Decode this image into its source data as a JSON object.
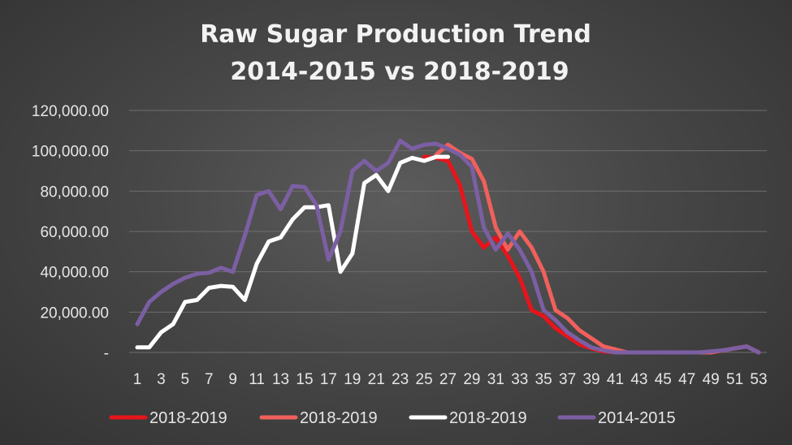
{
  "chart_data": {
    "type": "line",
    "title": [
      "Raw Sugar Production Trend",
      "2014-2015 vs 2018-2019"
    ],
    "xlabel": "",
    "ylabel": "",
    "x": [
      1,
      2,
      3,
      4,
      5,
      6,
      7,
      8,
      9,
      10,
      11,
      12,
      13,
      14,
      15,
      16,
      17,
      18,
      19,
      20,
      21,
      22,
      23,
      24,
      25,
      26,
      27,
      28,
      29,
      30,
      31,
      32,
      33,
      34,
      35,
      36,
      37,
      38,
      39,
      40,
      41,
      42,
      43,
      44,
      45,
      46,
      47,
      48,
      49,
      50,
      51,
      52,
      53
    ],
    "x_tick_labels": [
      "1",
      "3",
      "5",
      "7",
      "9",
      "11",
      "13",
      "15",
      "17",
      "19",
      "21",
      "23",
      "25",
      "27",
      "29",
      "31",
      "33",
      "35",
      "37",
      "39",
      "41",
      "43",
      "45",
      "47",
      "49",
      "51",
      "53"
    ],
    "ylim": [
      0,
      120000
    ],
    "y_ticks": [
      0,
      20000,
      40000,
      60000,
      80000,
      100000,
      120000
    ],
    "y_tick_labels": [
      "-",
      "20,000.00",
      "40,000.00",
      "60,000.00",
      "80,000.00",
      "100,000.00",
      "120,000.00"
    ],
    "grid": true,
    "legend_position": "bottom",
    "series": [
      {
        "name": "2018-2019",
        "color": "#e8141b",
        "x": [
          25,
          26,
          27,
          28,
          29,
          30,
          31,
          32,
          33,
          34,
          35,
          36,
          37,
          38,
          39,
          40,
          41,
          42,
          43,
          44,
          45,
          46,
          47,
          48,
          49,
          50,
          51,
          52,
          53
        ],
        "values": [
          97000,
          96500,
          95000,
          83000,
          60000,
          52000,
          57000,
          48000,
          37000,
          21000,
          18000,
          12000,
          8000,
          4000,
          2000,
          500,
          0,
          0,
          0,
          0,
          0,
          0,
          0,
          0,
          0,
          1000,
          2000,
          3000,
          0
        ]
      },
      {
        "name": "2018-2019",
        "color": "#f0605c",
        "x": [
          26,
          27,
          28,
          29,
          30,
          31,
          32,
          33,
          34,
          35,
          36,
          37,
          38,
          39,
          40,
          41,
          42,
          43,
          44,
          45,
          46,
          47,
          48,
          49,
          50,
          51,
          52,
          53
        ],
        "values": [
          98000,
          103000,
          99000,
          96000,
          85000,
          62000,
          51000,
          60000,
          52000,
          40000,
          21000,
          17000,
          11000,
          7000,
          3000,
          1500,
          0,
          0,
          0,
          0,
          0,
          0,
          0,
          0,
          1000,
          2000,
          3000,
          0
        ]
      },
      {
        "name": "2018-2019",
        "color": "#ffffff",
        "x": [
          1,
          2,
          3,
          4,
          5,
          6,
          7,
          8,
          9,
          10,
          11,
          12,
          13,
          14,
          15,
          16,
          17,
          18,
          19,
          20,
          21,
          22,
          23,
          24,
          25,
          26,
          27
        ],
        "values": [
          2500,
          2500,
          10000,
          14000,
          25000,
          26000,
          32000,
          33000,
          32500,
          26000,
          44000,
          55000,
          57000,
          66000,
          72000,
          72000,
          73000,
          40000,
          49000,
          84000,
          88000,
          80000,
          94000,
          96500,
          95000,
          97000,
          97000
        ]
      },
      {
        "name": "2014-2015",
        "color": "#7c5fa3",
        "x": [
          1,
          2,
          3,
          4,
          5,
          6,
          7,
          8,
          9,
          10,
          11,
          12,
          13,
          14,
          15,
          16,
          17,
          18,
          19,
          20,
          21,
          22,
          23,
          24,
          25,
          26,
          27,
          28,
          29,
          30,
          31,
          32,
          33,
          34,
          35,
          36,
          37,
          38,
          39,
          40,
          41,
          42,
          43,
          44,
          45,
          46,
          47,
          48,
          49,
          50,
          51,
          52,
          53
        ],
        "values": [
          14000,
          25000,
          30000,
          34000,
          37000,
          39000,
          39500,
          42000,
          40000,
          58000,
          78000,
          80000,
          71000,
          82500,
          82000,
          73000,
          46000,
          60000,
          90000,
          95000,
          90000,
          94000,
          105000,
          101000,
          103000,
          103500,
          101000,
          98000,
          92000,
          62000,
          51000,
          59000,
          51000,
          40000,
          21000,
          16000,
          10000,
          6000,
          2500,
          1000,
          0,
          0,
          0,
          0,
          0,
          0,
          0,
          0,
          500,
          1000,
          2000,
          3000,
          0
        ]
      }
    ]
  }
}
